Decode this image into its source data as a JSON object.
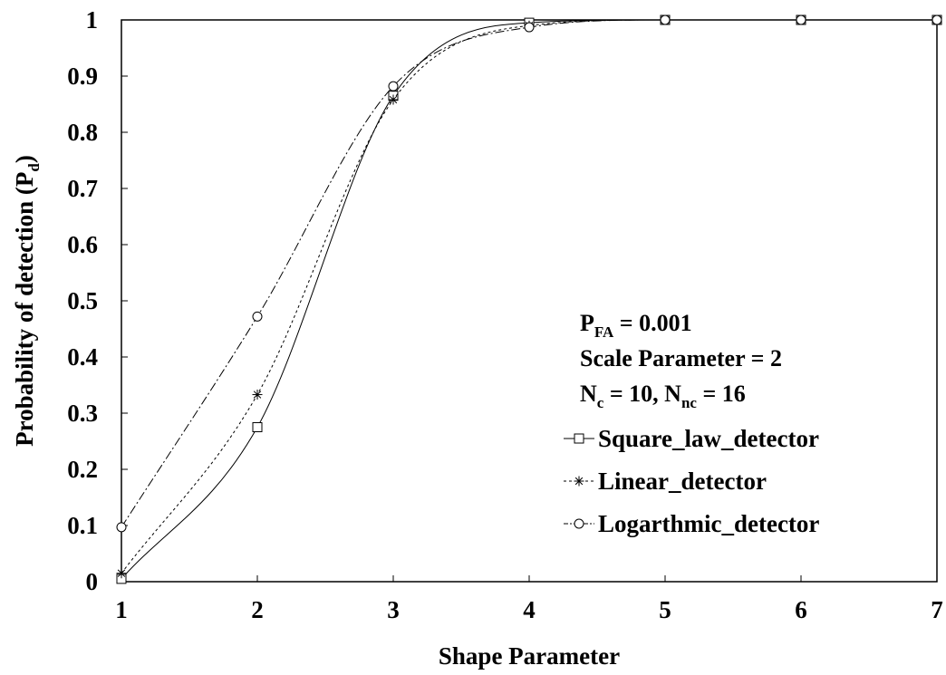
{
  "chart_data": {
    "type": "line",
    "xlabel": "Shape Parameter",
    "ylabel": {
      "main": "Probability of detection (P",
      "sub": "d",
      "close": ")"
    },
    "xlim": [
      1,
      7
    ],
    "ylim": [
      0,
      1
    ],
    "x_ticks": [
      1,
      2,
      3,
      4,
      5,
      6,
      7
    ],
    "y_ticks": [
      "0",
      "0.1",
      "0.2",
      "0.3",
      "0.4",
      "0.5",
      "0.6",
      "0.7",
      "0.8",
      "0.9",
      "1"
    ],
    "grid": false,
    "legend_position": "right",
    "annotation": {
      "line1": {
        "main": "P",
        "sub": "FA",
        "rest": " = 0.001"
      },
      "line2": {
        "text": "Scale Parameter = 2"
      },
      "line3": {
        "a_main": "N",
        "a_sub": "c",
        "a_rest": " = 10, ",
        "b_main": "N",
        "b_sub": "nc",
        "b_rest": " = 16"
      }
    },
    "series": [
      {
        "name": "Square_law_detector",
        "marker": "square",
        "dash": "",
        "x": [
          1,
          2,
          3,
          4,
          5,
          6,
          7
        ],
        "y": [
          0.005,
          0.275,
          0.865,
          0.995,
          1.0,
          1.0,
          1.0
        ]
      },
      {
        "name": "Linear_detector",
        "marker": "asterisk",
        "dash": "3,3",
        "x": [
          1,
          2,
          3,
          4,
          5,
          6,
          7
        ],
        "y": [
          0.015,
          0.333,
          0.858,
          0.99,
          1.0,
          1.0,
          1.0
        ]
      },
      {
        "name": "Logarthmic_detector",
        "marker": "circle",
        "dash": "10,3,2,3",
        "x": [
          1,
          2,
          3,
          4,
          5,
          6,
          7
        ],
        "y": [
          0.097,
          0.472,
          0.882,
          0.987,
          1.0,
          1.0,
          1.0
        ]
      }
    ]
  }
}
